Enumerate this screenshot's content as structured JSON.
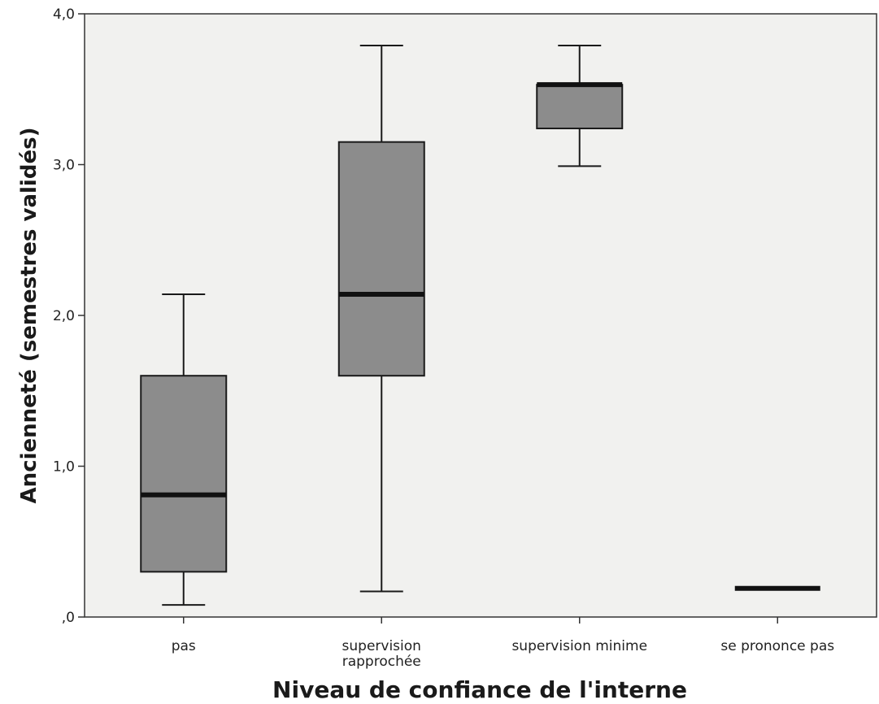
{
  "chart_data": {
    "type": "boxplot",
    "xlabel": "Niveau de confiance de l'interne",
    "ylabel": "Ancienneté (semestres validés)",
    "ylim": [
      0,
      4
    ],
    "yticks": [
      {
        "value": 0,
        "label": ",0"
      },
      {
        "value": 1,
        "label": "1,0"
      },
      {
        "value": 2,
        "label": "2,0"
      },
      {
        "value": 3,
        "label": "3,0"
      },
      {
        "value": 4,
        "label": "4,0"
      }
    ],
    "grid": false,
    "box_color": "#8c8c8c",
    "plot_background": "#f1f1ef",
    "categories": [
      {
        "label": [
          "pas"
        ],
        "whisker_low": 0.08,
        "q1": 0.3,
        "median": 0.81,
        "q3": 1.6,
        "whisker_high": 2.14
      },
      {
        "label": [
          "supervision",
          "rapprochée"
        ],
        "whisker_low": 0.17,
        "q1": 1.6,
        "median": 2.14,
        "q3": 3.15,
        "whisker_high": 3.79
      },
      {
        "label": [
          "supervision minime"
        ],
        "whisker_low": 2.99,
        "q1": 3.24,
        "median": 3.53,
        "q3": 3.53,
        "whisker_high": 3.79
      },
      {
        "label": [
          "se prononce pas"
        ],
        "whisker_low": 0.19,
        "q1": 0.19,
        "median": 0.19,
        "q3": 0.19,
        "whisker_high": 0.19
      }
    ]
  }
}
